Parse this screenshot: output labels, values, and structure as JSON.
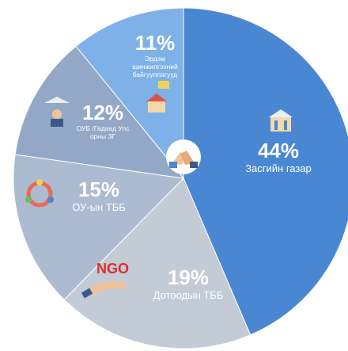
{
  "chart_data": {
    "type": "pie",
    "categories": [
      "Засгийн газар",
      "Дотоодын ТББ",
      "ОУ-ын ТББ",
      "ОУБ /Гадаад Улс орны ЗГ",
      "Эрдэм шинжилгээний байгууллагууд"
    ],
    "values": [
      44,
      19,
      15,
      12,
      11
    ],
    "value_labels": [
      "44%",
      "19%",
      "15%",
      "12%",
      "11%"
    ],
    "colors": [
      "#4a87d3",
      "#c3cbd7",
      "#adbbd0",
      "#93a8c6",
      "#7eb1e8"
    ]
  }
}
